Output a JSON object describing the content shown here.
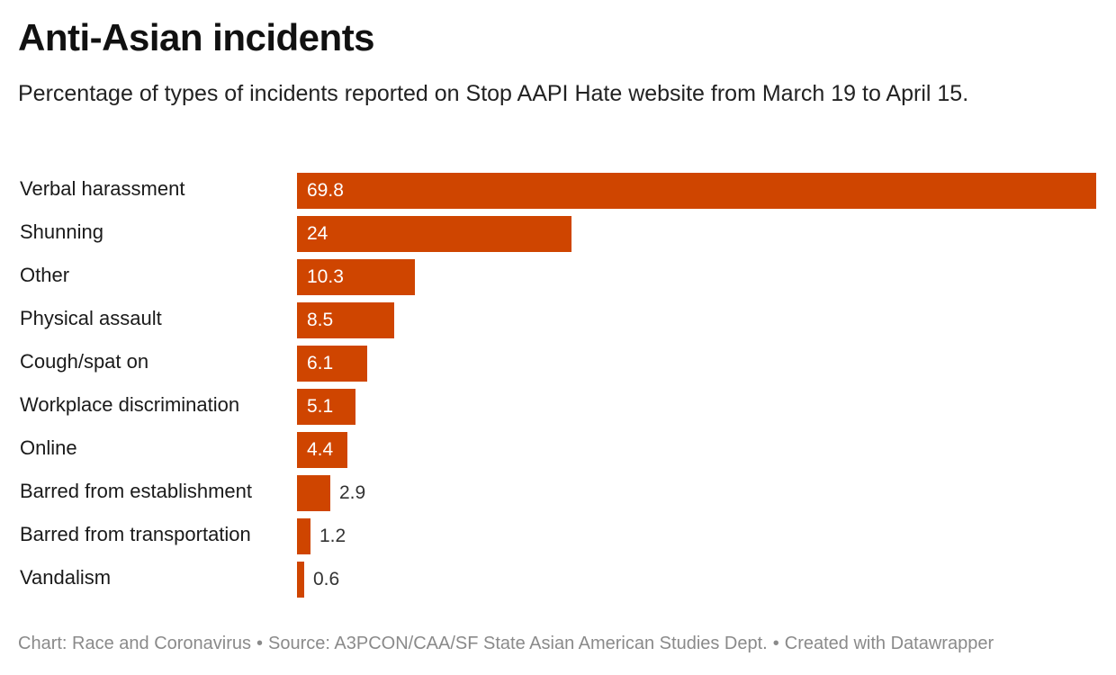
{
  "title": "Anti-Asian incidents",
  "subtitle": "Percentage of types of incidents reported on Stop AAPI Hate website from March 19 to April 15.",
  "footer": {
    "chart": "Chart: Race and Coronavirus",
    "separator": "•",
    "source": "Source: A3PCON/CAA/SF State Asian American Studies Dept.",
    "created": "Created with Datawrapper"
  },
  "colors": {
    "bar": "#cf4500",
    "inside_label": "#ffffff",
    "outside_label": "#333333",
    "footer": "#8a8a8a"
  },
  "chart_data": {
    "type": "bar",
    "orientation": "horizontal",
    "categories": [
      "Verbal harassment",
      "Shunning",
      "Other",
      "Physical assault",
      "Cough/spat on",
      "Workplace discrimination",
      "Online",
      "Barred from establishment",
      "Barred from transportation",
      "Vandalism"
    ],
    "values": [
      69.8,
      24,
      10.3,
      8.5,
      6.1,
      5.1,
      4.4,
      2.9,
      1.2,
      0.6
    ],
    "value_labels": [
      "69.8",
      "24",
      "10.3",
      "8.5",
      "6.1",
      "5.1",
      "4.4",
      "2.9",
      "1.2",
      "0.6"
    ],
    "xlim": [
      0,
      69.8
    ],
    "grid": false,
    "legend": "none"
  }
}
